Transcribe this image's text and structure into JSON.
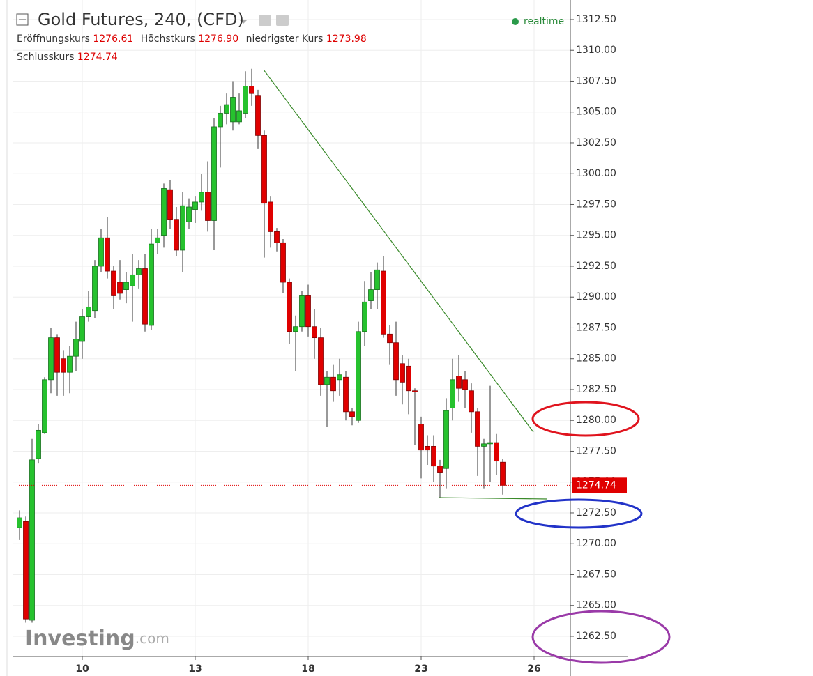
{
  "chart_data": {
    "type": "candlestick",
    "title": "Gold Futures, 240, (CFD)",
    "status": "realtime",
    "watermark": [
      "Investing",
      ".com"
    ],
    "ohlc_legend": [
      {
        "label": "Eröffnungskurs",
        "value": "1276.61"
      },
      {
        "label": "Höchstkurs",
        "value": "1276.90"
      },
      {
        "label": "niedrigster Kurs",
        "value": "1273.98"
      },
      {
        "label": "Schlusskurs",
        "value": "1274.74"
      }
    ],
    "categories": [
      null,
      null,
      null,
      null,
      null,
      null,
      null,
      null,
      null,
      null,
      "10",
      null,
      null,
      null,
      null,
      null,
      null,
      null,
      null,
      null,
      null,
      null,
      null,
      null,
      null,
      null,
      null,
      null,
      "13",
      null,
      null,
      null,
      null,
      null,
      null,
      null,
      null,
      null,
      null,
      null,
      null,
      null,
      null,
      null,
      null,
      null,
      "18",
      null,
      null,
      null,
      null,
      null,
      null,
      null,
      null,
      null,
      null,
      null,
      null,
      null,
      null,
      null,
      null,
      null,
      "23",
      null,
      null,
      null,
      null,
      null,
      null,
      null,
      null,
      null,
      null,
      null,
      null,
      null,
      null,
      null,
      null,
      null,
      "26"
    ],
    "open": [
      1271.3,
      1271.8,
      1263.8,
      1276.9,
      1279.0,
      1283.3,
      1286.7,
      1285.0,
      1283.9,
      1285.2,
      1286.4,
      1288.4,
      1288.9,
      1292.5,
      1294.8,
      1292.1,
      1291.2,
      1290.6,
      1290.9,
      1291.8,
      1292.3,
      1287.7,
      1294.4,
      1295.0,
      1298.7,
      1296.3,
      1293.8,
      1296.1,
      1297.1,
      1297.7,
      1298.5,
      1296.2,
      1303.8,
      1304.9,
      1304.2,
      1304.2,
      1304.9,
      1307.1,
      1306.3,
      1303.1,
      1297.7,
      1295.3,
      1294.4,
      1291.2,
      1287.2,
      1287.6,
      1290.1,
      1287.6,
      1286.7,
      1282.9,
      1283.5,
      1283.3,
      1283.5,
      1280.7,
      1280.0,
      1287.2,
      1289.7,
      1290.6,
      1292.1,
      1287.0,
      1286.3,
      1284.6,
      1284.4,
      1282.4,
      1279.7,
      1277.9,
      1277.9,
      1276.3,
      1276.1,
      1281.0,
      1283.6,
      1283.3,
      1282.4,
      1280.7,
      1277.9,
      1278.1,
      1278.2,
      1276.61,
      null,
      null,
      null,
      null,
      null
    ],
    "high": [
      1272.7,
      1272.2,
      1278.5,
      1279.7,
      1283.5,
      1287.5,
      1287.0,
      1285.7,
      1286.0,
      1288.0,
      1289.0,
      1290.5,
      1293.0,
      1295.5,
      1296.5,
      1292.5,
      1293.0,
      1292.0,
      1293.5,
      1293.0,
      1293.5,
      1295.5,
      1295.5,
      1299.2,
      1299.5,
      1297.3,
      1298.5,
      1298.0,
      1298.2,
      1300.0,
      1301.0,
      1304.5,
      1305.5,
      1306.5,
      1307.5,
      1306.5,
      1308.3,
      1308.5,
      1306.8,
      1303.5,
      1298.2,
      1295.6,
      1294.7,
      1291.5,
      1288.5,
      1290.5,
      1291.0,
      1289.0,
      1287.5,
      1284.0,
      1284.5,
      1285.0,
      1284.0,
      1281.0,
      1288.0,
      1291.3,
      1292.0,
      1292.8,
      1293.3,
      1287.7,
      1288.0,
      1285.3,
      1285.0,
      1282.6,
      1280.3,
      1278.8,
      1278.8,
      1276.8,
      1281.8,
      1285.0,
      1285.3,
      1284.0,
      1283.0,
      1281.0,
      1278.5,
      1282.8,
      1278.9,
      1276.9,
      null,
      null,
      null,
      null,
      null
    ],
    "low": [
      1270.3,
      1263.6,
      1263.6,
      1276.5,
      1278.9,
      1282.2,
      1282.0,
      1282.0,
      1282.2,
      1284.0,
      1285.0,
      1288.0,
      1288.3,
      1292.0,
      1291.5,
      1289.0,
      1289.8,
      1289.5,
      1288.0,
      1290.7,
      1287.2,
      1287.3,
      1293.5,
      1294.0,
      1295.5,
      1293.3,
      1292.0,
      1295.5,
      1296.0,
      1297.0,
      1295.3,
      1293.8,
      1300.5,
      1304.0,
      1303.5,
      1304.0,
      1304.5,
      1305.5,
      1302.0,
      1293.2,
      1294.0,
      1293.7,
      1290.3,
      1286.2,
      1284.0,
      1287.2,
      1286.8,
      1285.0,
      1282.0,
      1279.5,
      1281.5,
      1282.0,
      1280.0,
      1279.6,
      1279.8,
      1286.0,
      1289.0,
      1289.0,
      1286.7,
      1284.5,
      1282.0,
      1281.3,
      1280.5,
      1278.0,
      1275.3,
      1276.4,
      1275.0,
      1273.7,
      1274.5,
      1280.0,
      1281.5,
      1281.0,
      1279.0,
      1275.5,
      1274.5,
      1275.0,
      1275.6,
      1273.98,
      null,
      null,
      null,
      null,
      null
    ],
    "close": [
      1272.1,
      1263.9,
      1276.8,
      1279.2,
      1283.3,
      1286.7,
      1283.9,
      1283.9,
      1285.2,
      1286.6,
      1288.4,
      1289.2,
      1292.5,
      1294.8,
      1292.1,
      1290.1,
      1290.3,
      1291.2,
      1291.8,
      1292.3,
      1287.8,
      1294.3,
      1294.8,
      1298.8,
      1296.3,
      1293.8,
      1297.4,
      1297.3,
      1297.7,
      1298.5,
      1296.2,
      1303.8,
      1304.9,
      1305.6,
      1306.2,
      1305.1,
      1307.1,
      1306.5,
      1303.1,
      1297.6,
      1295.3,
      1294.4,
      1291.2,
      1287.2,
      1287.6,
      1290.1,
      1287.6,
      1286.7,
      1282.9,
      1283.5,
      1282.4,
      1283.7,
      1280.7,
      1280.3,
      1287.2,
      1289.6,
      1290.6,
      1292.2,
      1287.0,
      1286.3,
      1283.3,
      1283.1,
      1282.4,
      1282.3,
      1277.6,
      1277.6,
      1276.3,
      1275.8,
      1280.8,
      1283.3,
      1282.6,
      1282.5,
      1280.7,
      1277.9,
      1278.1,
      1278.2,
      1276.7,
      1274.74,
      null,
      null,
      null,
      null,
      null
    ],
    "up_color": "#26c22e",
    "down_color": "#e00000",
    "ylim": [
      1260.86,
      1314.08
    ],
    "yticks": [
      {
        "value": 1262.5,
        "label": "1262.50"
      },
      {
        "value": 1265,
        "label": "1265.00"
      },
      {
        "value": 1267.5,
        "label": "1267.50"
      },
      {
        "value": 1270,
        "label": "1270.00"
      },
      {
        "value": 1272.5,
        "label": "1272.50"
      },
      {
        "value": 1275,
        "label": "1275.00"
      },
      {
        "value": 1277.5,
        "label": "1277.50"
      },
      {
        "value": 1280,
        "label": "1280.00"
      },
      {
        "value": 1282.5,
        "label": "1282.50"
      },
      {
        "value": 1285,
        "label": "1285.00"
      },
      {
        "value": 1287.5,
        "label": "1287.50"
      },
      {
        "value": 1290,
        "label": "1290.00"
      },
      {
        "value": 1292.5,
        "label": "1292.50"
      },
      {
        "value": 1295,
        "label": "1295.00"
      },
      {
        "value": 1297.5,
        "label": "1297.50"
      },
      {
        "value": 1300,
        "label": "1300.00"
      },
      {
        "value": 1302.5,
        "label": "1302.50"
      },
      {
        "value": 1305,
        "label": "1305.00"
      },
      {
        "value": 1307.5,
        "label": "1307.50"
      },
      {
        "value": 1310,
        "label": "1310.00"
      },
      {
        "value": 1312.5,
        "label": "1312.50"
      }
    ],
    "grid": true
  }
}
